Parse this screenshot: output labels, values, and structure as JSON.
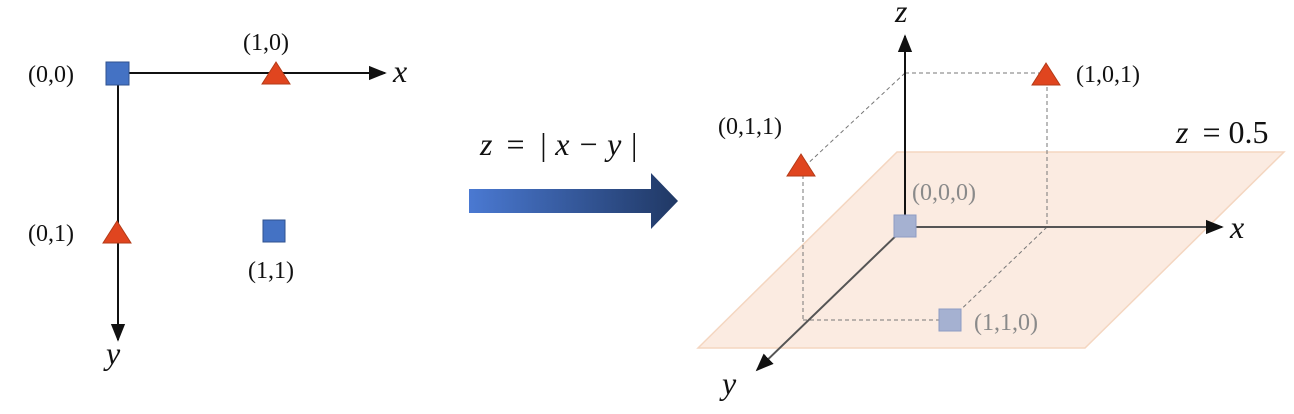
{
  "left_panel": {
    "axis_x_label": "x",
    "axis_y_label": "y",
    "points": [
      {
        "label": "(0,0)",
        "class": "square"
      },
      {
        "label": "(1,0)",
        "class": "triangle"
      },
      {
        "label": "(0,1)",
        "class": "triangle"
      },
      {
        "label": "(1,1)",
        "class": "square"
      }
    ]
  },
  "transform": {
    "formula_lhs": "z",
    "formula_eq": "=",
    "formula_rhs": "| x − y |"
  },
  "right_panel": {
    "axis_x_label": "x",
    "axis_y_label": "y",
    "axis_z_label": "z",
    "plane_label_var": "z",
    "plane_label_val": "= 0.5",
    "points": [
      {
        "label": "(0,0,0)",
        "class": "square"
      },
      {
        "label": "(1,0,1)",
        "class": "triangle"
      },
      {
        "label": "(0,1,1)",
        "class": "triangle"
      },
      {
        "label": "(1,1,0)",
        "class": "square"
      }
    ]
  },
  "colors": {
    "square": "#4472c4",
    "square_faded": "#a5b1d1",
    "triangle": "#e0451f",
    "plane": "#fbe8dc",
    "plane_edge": "#f3cfb6",
    "arrow_start": "#4a79d2",
    "arrow_end": "#203864"
  }
}
